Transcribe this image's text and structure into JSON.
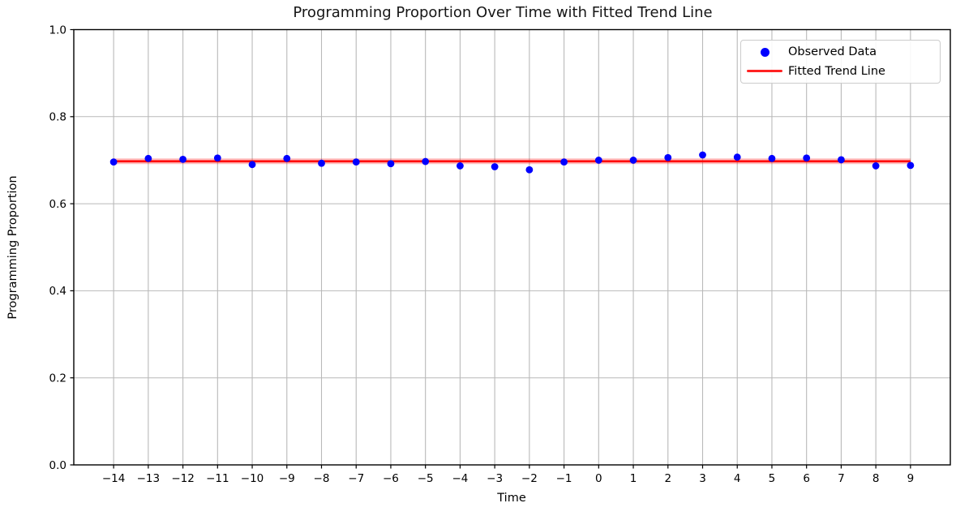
{
  "chart_data": {
    "type": "scatter",
    "title": "Programming Proportion Over Time with Fitted Trend Line",
    "xlabel": "Time",
    "ylabel": "Programming Proportion",
    "xlim": [
      -15.15,
      10.15
    ],
    "ylim": [
      0.0,
      1.0
    ],
    "grid": true,
    "legend_position": "upper right",
    "x": [
      -14,
      -13,
      -12,
      -11,
      -10,
      -9,
      -8,
      -7,
      -6,
      -5,
      -4,
      -3,
      -2,
      -1,
      0,
      1,
      2,
      3,
      4,
      5,
      6,
      7,
      8,
      9
    ],
    "series": [
      {
        "name": "Observed Data",
        "type": "scatter",
        "color": "#0000ff",
        "marker": "circle",
        "values": [
          0.696,
          0.704,
          0.702,
          0.705,
          0.69,
          0.704,
          0.693,
          0.696,
          0.692,
          0.697,
          0.687,
          0.685,
          0.678,
          0.696,
          0.7,
          0.7,
          0.706,
          0.712,
          0.707,
          0.704,
          0.705,
          0.701,
          0.687,
          0.688
        ]
      },
      {
        "name": "Fitted Trend Line",
        "type": "line",
        "color": "#ff0000",
        "x": [
          -14,
          9
        ],
        "values": [
          0.6975,
          0.6975
        ]
      }
    ],
    "xticks": {
      "values": [
        -14,
        -13,
        -12,
        -11,
        -10,
        -9,
        -8,
        -7,
        -6,
        -5,
        -4,
        -3,
        -2,
        -1,
        0,
        1,
        2,
        3,
        4,
        5,
        6,
        7,
        8,
        9
      ],
      "labels": [
        "−14",
        "−13",
        "−12",
        "−11",
        "−10",
        "−9",
        "−8",
        "−7",
        "−6",
        "−5",
        "−4",
        "−3",
        "−2",
        "−1",
        "0",
        "1",
        "2",
        "3",
        "4",
        "5",
        "6",
        "7",
        "8",
        "9"
      ]
    },
    "yticks": {
      "values": [
        0.0,
        0.2,
        0.4,
        0.6,
        0.8,
        1.0
      ],
      "labels": [
        "0.0",
        "0.2",
        "0.4",
        "0.6",
        "0.8",
        "1.0"
      ]
    }
  },
  "colors": {
    "background": "#ffffff",
    "grid": "#b9b9b9",
    "spine": "#000000",
    "tick_text": "#000000",
    "title_text": "#161616",
    "scatter": "#0000ff",
    "trend": "#ff0000"
  }
}
